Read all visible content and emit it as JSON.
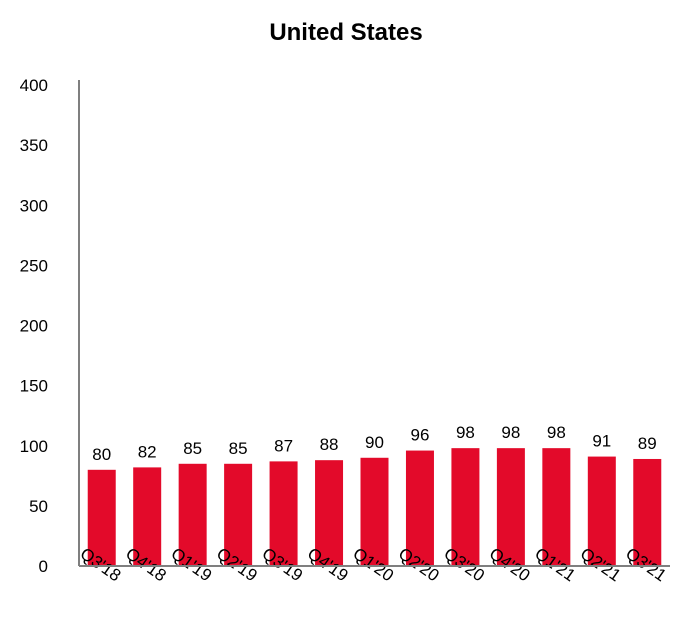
{
  "chart_data": {
    "type": "bar",
    "title": "United States",
    "xlabel": "",
    "ylabel": "",
    "categories": [
      "Q3'18",
      "Q4'18",
      "Q1'19",
      "Q2'19",
      "Q3'19",
      "Q4'19",
      "Q1'20",
      "Q2'20",
      "Q3'20",
      "Q4'20",
      "Q1'21",
      "Q2'21",
      "Q3'21"
    ],
    "values": [
      80,
      82,
      85,
      85,
      87,
      88,
      90,
      96,
      98,
      98,
      98,
      91,
      89
    ],
    "ylim": [
      0,
      400
    ],
    "yticks": [
      0,
      50,
      100,
      150,
      200,
      250,
      300,
      350,
      400
    ],
    "grid": false,
    "legend": "none",
    "bar_color": "#e30a2a",
    "axis_color": "#7f7f7f"
  }
}
